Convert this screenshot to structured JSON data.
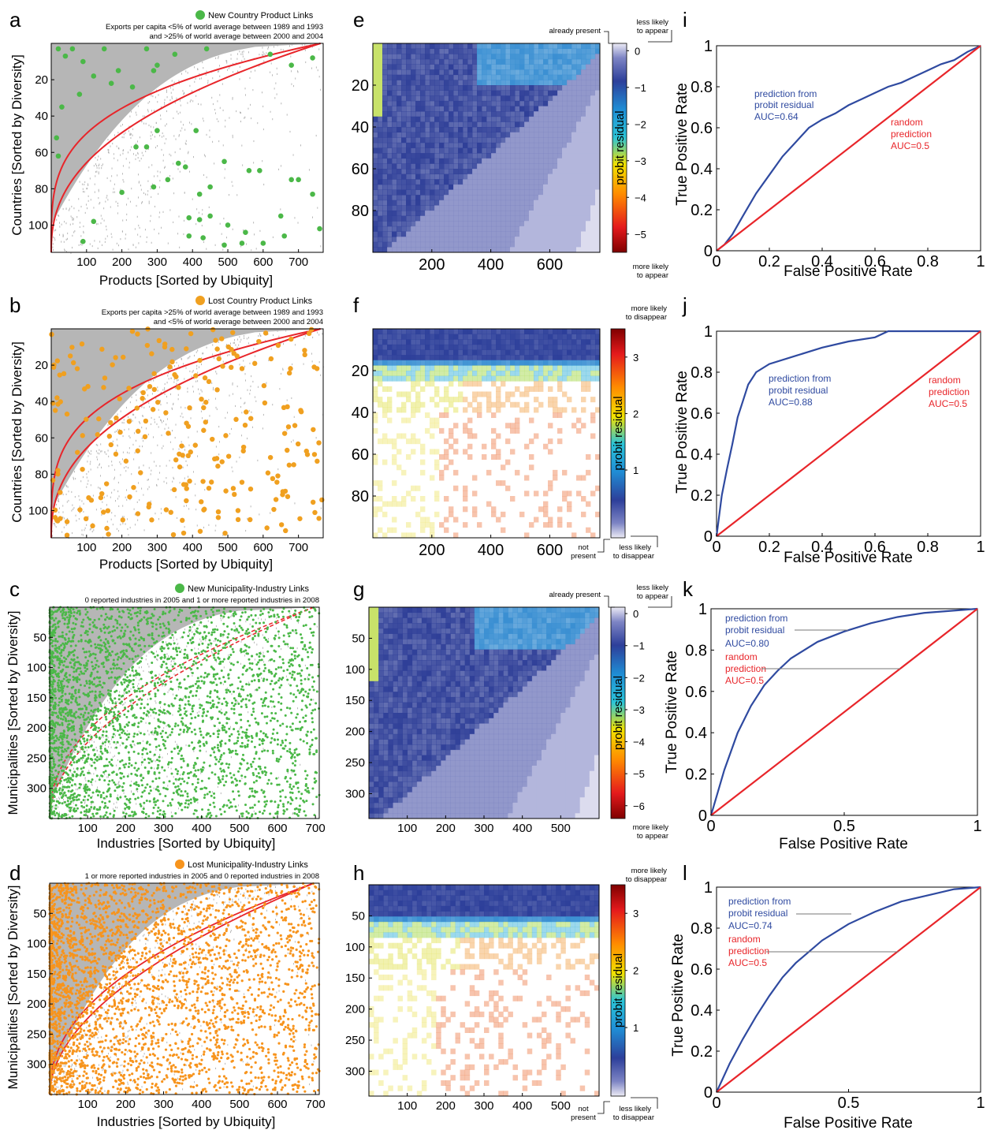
{
  "panels": {
    "a": {
      "letter": "a",
      "legend": "New Country Product Links",
      "legend_color": "#4bb848",
      "note1": "Exports per capita <5% of world average between 1989 and 1993",
      "note2": "and >25% of world average between 2000 and 2004",
      "xlabel": "Products [Sorted by Ubiquity]",
      "ylabel": "Countries [Sorted by Diversity]"
    },
    "b": {
      "letter": "b",
      "legend": "Lost  Country Product Links",
      "legend_color": "#f0a020",
      "note1": "Exports per capita >25% of world average between 1989 and 1993",
      "note2": "and <5% of world average between 2000 and 2004",
      "xlabel": "Products [Sorted by Ubiquity]",
      "ylabel": "Countries [Sorted by Diversity]"
    },
    "c": {
      "letter": "c",
      "legend": "New Municipality-Industry Links",
      "legend_color": "#4bb848",
      "note1": "0 reported industries in 2005 and 1 or more reported industries in 2008",
      "xlabel": "Industries [Sorted by Ubiquity]",
      "ylabel": "Municipalities [Sorted by Diversity]"
    },
    "d": {
      "letter": "d",
      "legend": "Lost Municipality-Industry Links",
      "legend_color": "#f7941d",
      "note1": "1 or more reported industries in 2005 and 0 reported industries in 2008",
      "xlabel": "Industries [Sorted by Ubiquity]",
      "ylabel": "Municipalities [Sorted by Diversity]"
    },
    "e": {
      "letter": "e",
      "top_left": "already present",
      "top_right1": "less likely",
      "top_right2": "to appear",
      "bottom1": "more likely",
      "bottom2": "to appear",
      "cb_label": "probit residual"
    },
    "f": {
      "letter": "f",
      "top1": "more likely",
      "top2": "to disappear",
      "bottom_left1": "not",
      "bottom_left2": "present",
      "bottom_right1": "less likely",
      "bottom_right2": "to disappear",
      "cb_label": "probit residual"
    },
    "g": {
      "letter": "g",
      "top_left": "already present",
      "top_right1": "less likely",
      "top_right2": "to appear",
      "bottom1": "more likely",
      "bottom2": "to appear",
      "cb_label": "probit residual"
    },
    "h": {
      "letter": "h",
      "top1": "more likely",
      "top2": "to disappear",
      "bottom_left1": "not",
      "bottom_left2": "present",
      "bottom_right1": "less likely",
      "bottom_right2": "to disappear",
      "cb_label": "probit residual"
    },
    "i": {
      "letter": "i",
      "pred1": "prediction from",
      "pred2": "probit residual",
      "pred3": "AUC=0.64",
      "rand1": "random",
      "rand2": "prediction",
      "rand3": "AUC=0.5",
      "xlabel": "False Positive Rate",
      "ylabel": "True Positive Rate"
    },
    "j": {
      "letter": "j",
      "pred1": "prediction from",
      "pred2": "probit residual",
      "pred3": "AUC=0.88",
      "rand1": "random",
      "rand2": "prediction",
      "rand3": "AUC=0.5",
      "xlabel": "False Positive Rate",
      "ylabel": "True Positive Rate"
    },
    "k": {
      "letter": "k",
      "pred1": "prediction from",
      "pred2": "probit residual",
      "pred3": "AUC=0.80",
      "rand1": "random",
      "rand2": "prediction",
      "rand3": "AUC=0.5",
      "xlabel": "False Positive Rate",
      "ylabel": "True Positive Rate"
    },
    "l": {
      "letter": "l",
      "pred1": "prediction from",
      "pred2": "probit residual",
      "pred3": "AUC=0.74",
      "rand1": "random",
      "rand2": "prediction",
      "rand3": "AUC=0.5",
      "xlabel": "False Positive Rate",
      "ylabel": "True Positive Rate"
    }
  },
  "chart_data": [
    {
      "id": "a",
      "type": "scatter",
      "xlim": [
        0,
        770
      ],
      "ylim": [
        0,
        115
      ],
      "y_reversed": true,
      "xticks": [
        100,
        200,
        300,
        400,
        500,
        600,
        700
      ],
      "yticks": [
        20,
        40,
        60,
        80,
        100
      ],
      "series": [
        {
          "name": "New Country Product Links",
          "color": "#4bb848",
          "points": [
            [
              20,
              3
            ],
            [
              40,
              7
            ],
            [
              60,
              3
            ],
            [
              90,
              10
            ],
            [
              150,
              3
            ],
            [
              270,
              3
            ],
            [
              350,
              6
            ],
            [
              440,
              3
            ],
            [
              620,
              6
            ],
            [
              680,
              12
            ],
            [
              740,
              8
            ],
            [
              80,
              28
            ],
            [
              120,
              18
            ],
            [
              170,
              22
            ],
            [
              190,
              15
            ],
            [
              230,
              24
            ],
            [
              290,
              15
            ],
            [
              300,
              12
            ],
            [
              30,
              35
            ],
            [
              410,
              48
            ],
            [
              15,
              52
            ],
            [
              300,
              48
            ],
            [
              20,
              62
            ],
            [
              240,
              57
            ],
            [
              270,
              57
            ],
            [
              360,
              66
            ],
            [
              380,
              68
            ],
            [
              330,
              75
            ],
            [
              490,
              65
            ],
            [
              560,
              70
            ],
            [
              590,
              70
            ],
            [
              680,
              75
            ],
            [
              700,
              75
            ],
            [
              200,
              82
            ],
            [
              290,
              79
            ],
            [
              420,
              83
            ],
            [
              450,
              79
            ],
            [
              740,
              83
            ],
            [
              390,
              96
            ],
            [
              420,
              97
            ],
            [
              450,
              95
            ],
            [
              500,
              100
            ],
            [
              650,
              95
            ],
            [
              120,
              98
            ],
            [
              390,
              106
            ],
            [
              430,
              107
            ],
            [
              550,
              104
            ],
            [
              660,
              106
            ],
            [
              90,
              109
            ],
            [
              490,
              111
            ],
            [
              540,
              110
            ],
            [
              760,
              102
            ],
            [
              600,
              110
            ]
          ]
        }
      ]
    },
    {
      "id": "b",
      "type": "scatter",
      "xlim": [
        0,
        770
      ],
      "ylim": [
        0,
        115
      ],
      "y_reversed": true,
      "xticks": [
        100,
        200,
        300,
        400,
        500,
        600,
        700
      ],
      "yticks": [
        20,
        40,
        60,
        80,
        100
      ],
      "series": [
        {
          "name": "Lost  Country Product Links",
          "color": "#f0a020",
          "points": "many orange points spread over the matrix"
        }
      ]
    },
    {
      "id": "c",
      "type": "scatter",
      "xlim": [
        0,
        710
      ],
      "ylim": [
        0,
        350
      ],
      "y_reversed": true,
      "xticks": [
        100,
        200,
        300,
        400,
        500,
        600,
        700
      ],
      "yticks": [
        50,
        100,
        150,
        200,
        250,
        300
      ],
      "series": [
        {
          "name": "New Municipality-Industry Links",
          "color": "#4bb848"
        }
      ]
    },
    {
      "id": "d",
      "type": "scatter",
      "xlim": [
        0,
        710
      ],
      "ylim": [
        0,
        350
      ],
      "y_reversed": true,
      "xticks": [
        100,
        200,
        300,
        400,
        500,
        600,
        700
      ],
      "yticks": [
        50,
        100,
        150,
        200,
        250,
        300
      ],
      "series": [
        {
          "name": "Lost Municipality-Industry Links",
          "color": "#f7941d"
        }
      ]
    },
    {
      "id": "e",
      "type": "heatmap",
      "xlim": [
        0,
        770
      ],
      "ylim": [
        0,
        100
      ],
      "xticks": [
        200,
        400,
        600
      ],
      "yticks": [
        20,
        40,
        60,
        80
      ],
      "colorbar": {
        "ticks": [
          0,
          -1,
          -2,
          -3,
          -4,
          -5
        ],
        "range": [
          -5.5,
          0.2
        ]
      }
    },
    {
      "id": "f",
      "type": "heatmap",
      "xlim": [
        0,
        770
      ],
      "ylim": [
        0,
        100
      ],
      "xticks": [
        200,
        400,
        600
      ],
      "yticks": [
        20,
        40,
        60,
        80
      ],
      "colorbar": {
        "ticks": [
          3,
          2,
          1
        ],
        "range": [
          -0.2,
          3.5
        ]
      }
    },
    {
      "id": "g",
      "type": "heatmap",
      "xlim": [
        0,
        600
      ],
      "ylim": [
        0,
        340
      ],
      "xticks": [
        100,
        200,
        300,
        400,
        500
      ],
      "yticks": [
        50,
        100,
        150,
        200,
        250,
        300
      ],
      "colorbar": {
        "ticks": [
          0,
          -1,
          -2,
          -3,
          -4,
          -5,
          -6
        ],
        "range": [
          -6.4,
          0.2
        ]
      }
    },
    {
      "id": "h",
      "type": "heatmap",
      "xlim": [
        0,
        600
      ],
      "ylim": [
        0,
        340
      ],
      "xticks": [
        100,
        200,
        300,
        400,
        500
      ],
      "yticks": [
        50,
        100,
        150,
        200,
        250,
        300
      ],
      "colorbar": {
        "ticks": [
          3,
          2,
          1
        ],
        "range": [
          -0.2,
          3.5
        ]
      }
    },
    {
      "id": "i",
      "type": "line",
      "xlim": [
        0,
        1
      ],
      "ylim": [
        0,
        1
      ],
      "xticks": [
        0,
        0.2,
        0.4,
        0.6,
        0.8,
        1
      ],
      "yticks": [
        0,
        0.2,
        0.4,
        0.6,
        0.8,
        1
      ],
      "series": [
        {
          "name": "prediction from probit residual AUC=0.64",
          "color": "#2f4aa0",
          "x": [
            0,
            0.03,
            0.06,
            0.1,
            0.15,
            0.2,
            0.25,
            0.3,
            0.35,
            0.4,
            0.45,
            0.5,
            0.55,
            0.6,
            0.65,
            0.7,
            0.75,
            0.8,
            0.85,
            0.9,
            0.95,
            1
          ],
          "y": [
            0,
            0.03,
            0.08,
            0.17,
            0.28,
            0.37,
            0.46,
            0.53,
            0.6,
            0.64,
            0.67,
            0.71,
            0.74,
            0.77,
            0.8,
            0.82,
            0.85,
            0.88,
            0.91,
            0.93,
            0.97,
            1
          ]
        },
        {
          "name": "random prediction AUC=0.5",
          "color": "#e8252a",
          "x": [
            0,
            1
          ],
          "y": [
            0,
            1
          ]
        }
      ]
    },
    {
      "id": "j",
      "type": "line",
      "xlim": [
        0,
        1
      ],
      "ylim": [
        0,
        1
      ],
      "xticks": [
        0,
        0.2,
        0.4,
        0.6,
        0.8,
        1
      ],
      "yticks": [
        0,
        0.2,
        0.4,
        0.6,
        0.8,
        1
      ],
      "series": [
        {
          "name": "prediction from probit residual AUC=0.88",
          "color": "#2f4aa0",
          "x": [
            0,
            0.01,
            0.02,
            0.04,
            0.06,
            0.08,
            0.1,
            0.12,
            0.15,
            0.2,
            0.3,
            0.4,
            0.5,
            0.6,
            0.65,
            1
          ],
          "y": [
            0,
            0.1,
            0.2,
            0.33,
            0.45,
            0.58,
            0.66,
            0.74,
            0.8,
            0.84,
            0.88,
            0.92,
            0.95,
            0.97,
            1,
            1
          ]
        },
        {
          "name": "random prediction AUC=0.5",
          "color": "#e8252a",
          "x": [
            0,
            1
          ],
          "y": [
            0,
            1
          ]
        }
      ]
    },
    {
      "id": "k",
      "type": "line",
      "xlim": [
        0,
        1
      ],
      "ylim": [
        0,
        1
      ],
      "xticks": [
        0,
        0.5,
        1
      ],
      "yticks": [
        0,
        0.2,
        0.4,
        0.6,
        0.8,
        1
      ],
      "series": [
        {
          "name": "prediction from probit residual AUC=0.80",
          "color": "#2f4aa0",
          "x": [
            0,
            0.05,
            0.1,
            0.15,
            0.2,
            0.25,
            0.3,
            0.4,
            0.5,
            0.6,
            0.7,
            0.8,
            0.9,
            1
          ],
          "y": [
            0,
            0.22,
            0.4,
            0.53,
            0.63,
            0.7,
            0.76,
            0.84,
            0.89,
            0.93,
            0.96,
            0.98,
            0.99,
            1
          ]
        },
        {
          "name": "random prediction AUC=0.5",
          "color": "#e8252a",
          "x": [
            0,
            1
          ],
          "y": [
            0,
            1
          ]
        }
      ]
    },
    {
      "id": "l",
      "type": "line",
      "xlim": [
        0,
        1
      ],
      "ylim": [
        0,
        1
      ],
      "xticks": [
        0,
        0.5,
        1
      ],
      "yticks": [
        0,
        0.2,
        0.4,
        0.6,
        0.8,
        1
      ],
      "series": [
        {
          "name": "prediction from probit residual AUC=0.74",
          "color": "#2f4aa0",
          "x": [
            0,
            0.05,
            0.1,
            0.15,
            0.2,
            0.25,
            0.3,
            0.4,
            0.5,
            0.6,
            0.7,
            0.8,
            0.9,
            1
          ],
          "y": [
            0,
            0.14,
            0.26,
            0.37,
            0.47,
            0.56,
            0.63,
            0.74,
            0.82,
            0.88,
            0.93,
            0.96,
            0.99,
            1
          ]
        },
        {
          "name": "random prediction AUC=0.5",
          "color": "#e8252a",
          "x": [
            0,
            1
          ],
          "y": [
            0,
            1
          ]
        }
      ]
    }
  ]
}
